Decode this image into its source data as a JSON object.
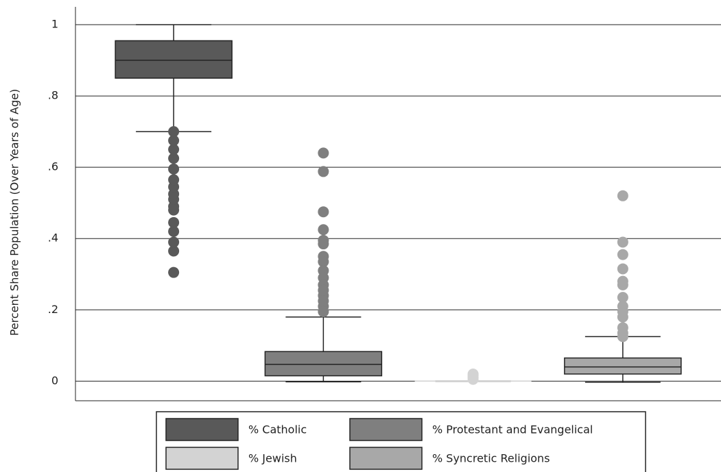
{
  "chart_data": {
    "type": "box",
    "y_label": "Percent Share Population (Over Years of Age)",
    "ylim": [
      -0.055,
      1.05
    ],
    "yticks": [
      0,
      {
        "value": 0.2,
        "label": ".2"
      },
      {
        "value": 0.4,
        "label": ".4"
      },
      {
        "value": 0.6,
        "label": ".6"
      },
      {
        "value": 0.8,
        "label": ".8"
      },
      1
    ],
    "grid": true,
    "series": [
      {
        "name": "% Catholic",
        "color": "#595959",
        "q1": 0.85,
        "median": 0.9,
        "q3": 0.955,
        "whisker_low": 0.7,
        "whisker_high": 1.0,
        "outliers": [
          0.305,
          0.365,
          0.39,
          0.42,
          0.445,
          0.48,
          0.49,
          0.51,
          0.525,
          0.545,
          0.565,
          0.595,
          0.625,
          0.65,
          0.675,
          0.7
        ]
      },
      {
        "name": "% Protestant and Evangelical",
        "color": "#7f7f7f",
        "q1": 0.015,
        "median": 0.047,
        "q3": 0.083,
        "whisker_low": -0.002,
        "whisker_high": 0.18,
        "outliers": [
          0.64,
          0.588,
          0.475,
          0.425,
          0.395,
          0.385,
          0.35,
          0.335,
          0.31,
          0.29,
          0.27,
          0.255,
          0.24,
          0.225,
          0.21,
          0.195
        ]
      },
      {
        "name": "% Jewish",
        "color": "#d3d3d3",
        "q1": 0,
        "median": 0,
        "q3": 0,
        "whisker_low": 0,
        "whisker_high": 0,
        "outliers": [
          0.005,
          0.01,
          0.015,
          0.02
        ]
      },
      {
        "name": "% Syncretic Religions",
        "color": "#a8a8a8",
        "q1": 0.02,
        "median": 0.04,
        "q3": 0.065,
        "whisker_low": -0.003,
        "whisker_high": 0.125,
        "outliers": [
          0.52,
          0.39,
          0.355,
          0.315,
          0.28,
          0.27,
          0.235,
          0.21,
          0.195,
          0.18,
          0.15,
          0.135,
          0.125
        ]
      }
    ]
  }
}
